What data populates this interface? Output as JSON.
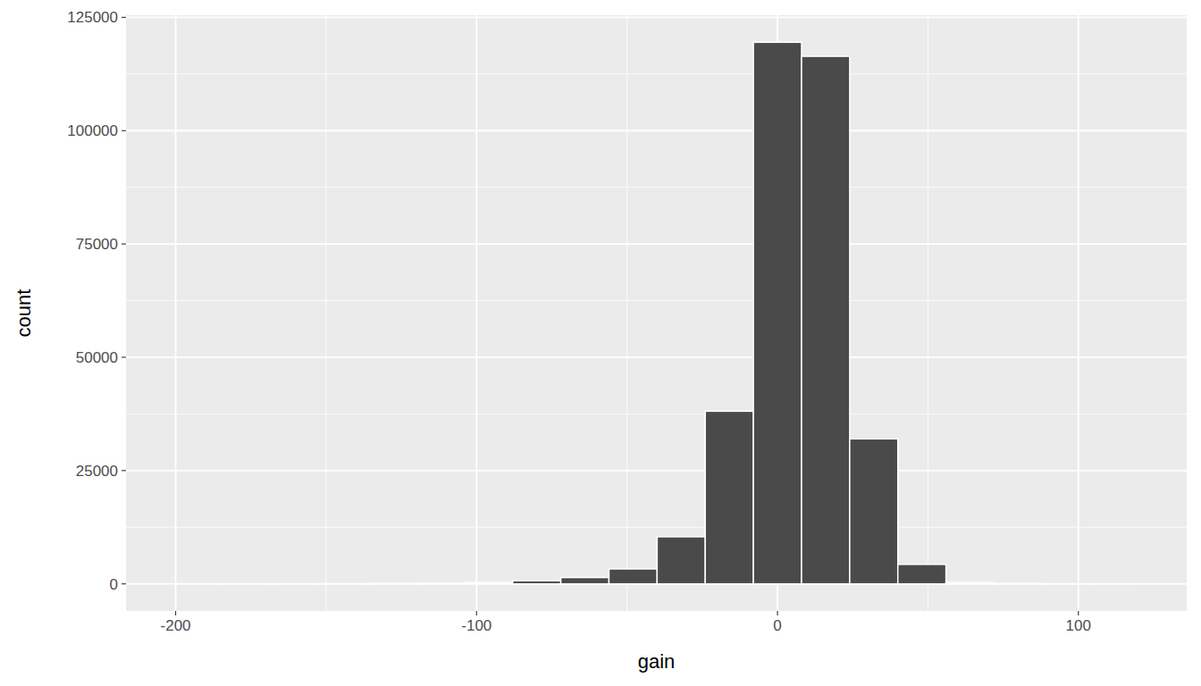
{
  "chart_data": {
    "type": "histogram",
    "x_label": "gain",
    "y_label": "count",
    "bins": [
      -200,
      -184,
      -168,
      -152,
      -136,
      -120,
      -104,
      -88,
      -72,
      -56,
      -40,
      -24,
      -8,
      8,
      24,
      40,
      56,
      72,
      88,
      104,
      120
    ],
    "values": [
      2,
      3,
      10,
      20,
      60,
      150,
      300,
      700,
      1400,
      3300,
      10400,
      38100,
      119500,
      116400,
      32000,
      4300,
      300,
      50,
      10,
      2
    ],
    "color": "#4a4a4a",
    "xlim": [
      -216.5,
      136
    ],
    "ylim": [
      -5975,
      125475
    ],
    "xticks": [
      -200,
      -100,
      0,
      100
    ],
    "yticks": [
      0,
      25000,
      50000,
      75000,
      100000,
      125000
    ],
    "grid": true
  }
}
